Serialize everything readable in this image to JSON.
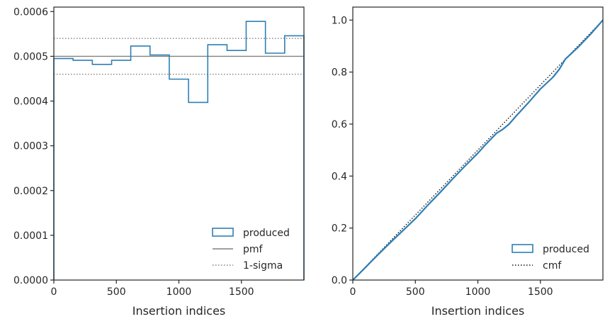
{
  "chart_data": [
    {
      "type": "histogram-step",
      "xlabel": "Insertion indices",
      "ylabel": "",
      "xlim": [
        0,
        2000
      ],
      "ylim": [
        0,
        0.00061
      ],
      "xticks": [
        "0",
        "500",
        "1000",
        "1500"
      ],
      "yticks": [
        "0.0000",
        "0.0001",
        "0.0002",
        "0.0003",
        "0.0004",
        "0.0005",
        "0.0006"
      ],
      "bin_edges": [
        0,
        154,
        308,
        462,
        615,
        769,
        923,
        1077,
        1231,
        1385,
        1538,
        1692,
        1846,
        2000
      ],
      "values": [
        0.000495,
        0.000491,
        0.000482,
        0.000491,
        0.000523,
        0.000503,
        0.000449,
        0.000397,
        0.000526,
        0.000513,
        0.000578,
        0.000507,
        0.000546
      ],
      "pmf": 0.0005,
      "sigma_band": [
        0.00046,
        0.00054
      ],
      "colors": {
        "produced": "#2f7fb5",
        "pmf": "#808080",
        "sigma": "#808080"
      },
      "legend": {
        "position": "lower-right",
        "items": [
          {
            "label": "produced",
            "style": "box"
          },
          {
            "label": "pmf",
            "style": "solid"
          },
          {
            "label": "1-sigma",
            "style": "dotted"
          }
        ]
      }
    },
    {
      "type": "line",
      "xlabel": "Insertion indices",
      "ylabel": "",
      "xlim": [
        0,
        2000
      ],
      "ylim": [
        0,
        1.05
      ],
      "xticks": [
        "0",
        "500",
        "1000",
        "1500"
      ],
      "yticks": [
        "0.0",
        "0.2",
        "0.4",
        "0.6",
        "0.8",
        "1.0"
      ],
      "produced": {
        "x": [
          0,
          100,
          200,
          300,
          400,
          500,
          600,
          700,
          800,
          900,
          1000,
          1050,
          1100,
          1150,
          1200,
          1250,
          1300,
          1400,
          1500,
          1600,
          1650,
          1700,
          1800,
          1900,
          2000
        ],
        "y": [
          0,
          0.048,
          0.097,
          0.144,
          0.19,
          0.236,
          0.288,
          0.338,
          0.39,
          0.44,
          0.488,
          0.515,
          0.54,
          0.565,
          0.58,
          0.6,
          0.628,
          0.68,
          0.735,
          0.78,
          0.81,
          0.85,
          0.895,
          0.945,
          1.0
        ]
      },
      "cmf": {
        "x": [
          0,
          2000
        ],
        "y": [
          0,
          1.0
        ]
      },
      "colors": {
        "produced": "#2f7fb5",
        "cmf": "#111111"
      },
      "legend": {
        "position": "lower-right",
        "items": [
          {
            "label": "produced",
            "style": "box"
          },
          {
            "label": "cmf",
            "style": "dotted"
          }
        ]
      }
    }
  ]
}
